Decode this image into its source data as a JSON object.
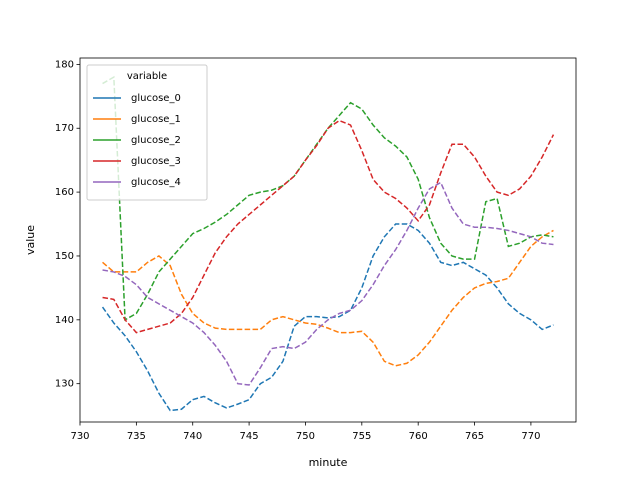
{
  "chart_data": {
    "type": "line",
    "x_label": "minute",
    "y_label": "value",
    "legend_title": "variable",
    "legend": "upper left",
    "x": [
      732,
      733,
      734,
      735,
      736,
      737,
      738,
      739,
      740,
      741,
      742,
      743,
      744,
      745,
      746,
      747,
      748,
      749,
      750,
      751,
      752,
      753,
      754,
      755,
      756,
      757,
      758,
      759,
      760,
      761,
      762,
      763,
      764,
      765,
      766,
      767,
      768,
      769,
      770,
      771,
      772
    ],
    "series": [
      {
        "name": "glucose_0",
        "color": "#1f77b4",
        "values": [
          142,
          139.5,
          137.5,
          135,
          132,
          128.5,
          125.8,
          126,
          127.5,
          128,
          127,
          126.2,
          126.8,
          127.5,
          130,
          131,
          133.5,
          139,
          140.5,
          140.5,
          140.3,
          140.5,
          141.5,
          145,
          150,
          153,
          155,
          155,
          154,
          152,
          149,
          148.5,
          149,
          148,
          147,
          145,
          142.5,
          141,
          140,
          138.5,
          139.2
        ]
      },
      {
        "name": "glucose_1",
        "color": "#ff7f0e",
        "values": [
          149,
          147.5,
          147.5,
          147.5,
          149,
          150,
          148.5,
          144,
          141,
          139.5,
          138.7,
          138.5,
          138.5,
          138.5,
          138.5,
          140,
          140.5,
          140,
          139.5,
          139.3,
          138.7,
          138,
          138,
          138.2,
          136.5,
          133.5,
          132.8,
          133.2,
          134.5,
          136.5,
          139,
          141.5,
          143.5,
          145,
          145.7,
          146,
          146.5,
          149,
          151.5,
          153,
          154
        ]
      },
      {
        "name": "glucose_2",
        "color": "#2ca02c",
        "values": [
          177,
          178,
          140,
          141,
          144,
          147.5,
          149.5,
          151.5,
          153.5,
          154.3,
          155.3,
          156.5,
          158,
          159.5,
          160,
          160.3,
          161,
          162.5,
          165,
          167.5,
          170,
          172,
          174,
          173,
          170.5,
          168.5,
          167.2,
          165.5,
          162,
          156,
          152,
          150,
          149.5,
          149.5,
          158.5,
          159,
          151.5,
          152,
          153,
          153.3,
          153
        ]
      },
      {
        "name": "glucose_3",
        "color": "#d62728",
        "values": [
          143.5,
          143.2,
          140,
          138,
          138.5,
          139,
          139.5,
          141,
          143.5,
          147,
          150.5,
          153,
          155,
          156.5,
          158,
          159.5,
          161,
          162.5,
          165,
          167.3,
          170,
          171.2,
          170.5,
          166.5,
          162,
          160,
          159,
          157.5,
          155.5,
          158,
          163,
          167.5,
          167.5,
          165.5,
          162.5,
          160,
          159.5,
          160.5,
          162.5,
          165.5,
          169
        ]
      },
      {
        "name": "glucose_4",
        "color": "#9467bd",
        "values": [
          147.8,
          147.5,
          146.8,
          145.5,
          143.5,
          142.5,
          141.5,
          140.5,
          139.5,
          138,
          136,
          133.5,
          130,
          129.8,
          132.5,
          135.5,
          135.8,
          135.5,
          136.5,
          138.5,
          140,
          141,
          141.5,
          143,
          145.5,
          148.5,
          151,
          154,
          157.5,
          160.5,
          161.5,
          157.5,
          155,
          154.5,
          154.5,
          154.3,
          154,
          153.5,
          153,
          152,
          151.8
        ]
      }
    ],
    "xlim": [
      730,
      774
    ],
    "ylim": [
      124,
      181
    ],
    "xticks": [
      730,
      735,
      740,
      745,
      750,
      755,
      760,
      765,
      770
    ],
    "yticks": [
      130,
      140,
      150,
      160,
      170,
      180
    ]
  }
}
